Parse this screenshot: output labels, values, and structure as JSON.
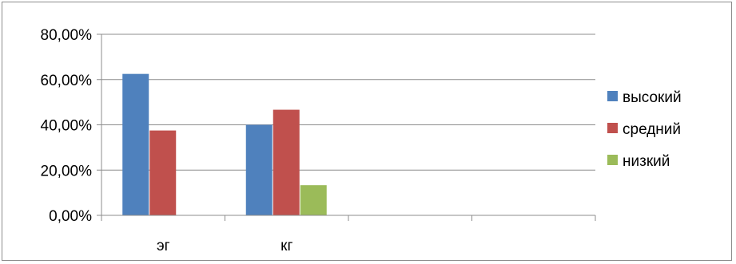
{
  "chart_data": {
    "type": "bar",
    "categories": [
      "эг",
      "кг",
      "",
      ""
    ],
    "series": [
      {
        "name": "высокий",
        "values": [
          62.5,
          40.0,
          null,
          null
        ],
        "color": "#4F81BD"
      },
      {
        "name": "средний",
        "values": [
          37.5,
          46.67,
          null,
          null
        ],
        "color": "#C0504D"
      },
      {
        "name": "низкий",
        "values": [
          0,
          13.33,
          null,
          null
        ],
        "color": "#9BBB59"
      }
    ],
    "y_tick_labels": [
      "0,00%",
      "20,00%",
      "40,00%",
      "60,00%",
      "80,00%"
    ],
    "y_ticks": [
      0,
      20,
      40,
      60,
      80
    ],
    "ylim": [
      0,
      80
    ],
    "grid": true,
    "legend_position": "right",
    "title": "",
    "xlabel": "",
    "ylabel": ""
  }
}
